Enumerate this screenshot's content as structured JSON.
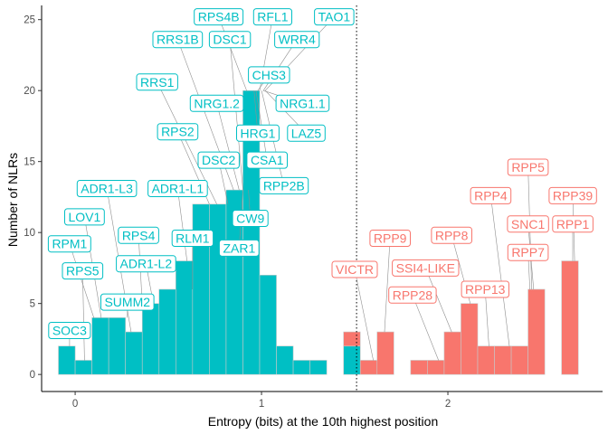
{
  "chart_data": {
    "type": "bar",
    "subtype": "stacked histogram with repelled text labels",
    "title": "",
    "xlabel": "Entropy (bits) at the 10th highest position",
    "ylabel": "Number of NLRs",
    "xlim": [
      -0.18,
      2.83
    ],
    "ylim": [
      -1.2,
      26
    ],
    "x_ticks": [
      0,
      1,
      2
    ],
    "y_ticks": [
      0,
      5,
      10,
      15,
      20,
      25
    ],
    "grid": false,
    "legend": "none",
    "bin_width": 0.09,
    "threshold": 1.51,
    "colors": {
      "group1": "#00BFC4",
      "group2": "#F8766D",
      "bar_edge": "#c8c8c8",
      "leader": "#8f8f8f"
    },
    "series": [
      {
        "name": "",
        "color": "#00BFC4",
        "bins": [
          {
            "x": -0.045,
            "y": 2
          },
          {
            "x": 0.045,
            "y": 1
          },
          {
            "x": 0.135,
            "y": 4
          },
          {
            "x": 0.225,
            "y": 4
          },
          {
            "x": 0.315,
            "y": 3
          },
          {
            "x": 0.405,
            "y": 5
          },
          {
            "x": 0.495,
            "y": 6
          },
          {
            "x": 0.585,
            "y": 8
          },
          {
            "x": 0.675,
            "y": 12
          },
          {
            "x": 0.765,
            "y": 12
          },
          {
            "x": 0.855,
            "y": 13
          },
          {
            "x": 0.945,
            "y": 20
          },
          {
            "x": 1.035,
            "y": 7
          },
          {
            "x": 1.125,
            "y": 2
          },
          {
            "x": 1.215,
            "y": 1
          },
          {
            "x": 1.305,
            "y": 1
          },
          {
            "x": 1.485,
            "y": 2
          }
        ]
      },
      {
        "name": "",
        "color": "#F8766D",
        "bins": [
          {
            "x": 1.485,
            "y": 1
          },
          {
            "x": 1.575,
            "y": 1
          },
          {
            "x": 1.665,
            "y": 3
          },
          {
            "x": 1.845,
            "y": 1
          },
          {
            "x": 1.935,
            "y": 1
          },
          {
            "x": 2.025,
            "y": 3
          },
          {
            "x": 2.115,
            "y": 5
          },
          {
            "x": 2.205,
            "y": 2
          },
          {
            "x": 2.295,
            "y": 2
          },
          {
            "x": 2.385,
            "y": 2
          },
          {
            "x": 2.475,
            "y": 6
          },
          {
            "x": 2.655,
            "y": 8
          }
        ]
      }
    ],
    "labels": [
      {
        "text": "SOC3",
        "group": 1,
        "x": -0.03,
        "y": 2,
        "lx": -0.03,
        "ly": 3.1
      },
      {
        "text": "RPS5",
        "group": 1,
        "x": 0.05,
        "y": 1,
        "lx": 0.04,
        "ly": 7.3
      },
      {
        "text": "RPM1",
        "group": 1,
        "x": 0.1,
        "y": 4,
        "lx": -0.03,
        "ly": 9.2
      },
      {
        "text": "LOV1",
        "group": 1,
        "x": 0.14,
        "y": 4,
        "lx": 0.05,
        "ly": 11.1
      },
      {
        "text": "ADR1-L3",
        "group": 1,
        "x": 0.3,
        "y": 3,
        "lx": 0.17,
        "ly": 13.1
      },
      {
        "text": "SUMM2",
        "group": 1,
        "x": 0.28,
        "y": 4,
        "lx": 0.28,
        "ly": 5.1
      },
      {
        "text": "RPS4",
        "group": 1,
        "x": 0.36,
        "y": 5,
        "lx": 0.34,
        "ly": 9.8
      },
      {
        "text": "ADR1-L2",
        "group": 1,
        "x": 0.42,
        "y": 5,
        "lx": 0.38,
        "ly": 7.8
      },
      {
        "text": "ADR1-L1",
        "group": 1,
        "x": 0.6,
        "y": 8,
        "lx": 0.55,
        "ly": 13.1
      },
      {
        "text": "RLM1",
        "group": 1,
        "x": 0.63,
        "y": 6,
        "lx": 0.63,
        "ly": 9.6
      },
      {
        "text": "RPS2",
        "group": 1,
        "x": 0.72,
        "y": 12,
        "lx": 0.55,
        "ly": 17.1
      },
      {
        "text": "RRS1",
        "group": 1,
        "x": 0.76,
        "y": 12,
        "lx": 0.44,
        "ly": 20.6
      },
      {
        "text": "DSC2",
        "group": 1,
        "x": 0.82,
        "y": 12,
        "lx": 0.77,
        "ly": 15.1
      },
      {
        "text": "RRS1B",
        "group": 1,
        "x": 0.85,
        "y": 13,
        "lx": 0.55,
        "ly": 23.6
      },
      {
        "text": "NRG1.2",
        "group": 1,
        "x": 0.88,
        "y": 13,
        "lx": 0.76,
        "ly": 19.1
      },
      {
        "text": "ZAR1",
        "group": 1,
        "x": 0.9,
        "y": 13,
        "lx": 0.88,
        "ly": 8.9
      },
      {
        "text": "CW9",
        "group": 1,
        "x": 0.93,
        "y": 13,
        "lx": 0.94,
        "ly": 11.0
      },
      {
        "text": "DSC1",
        "group": 1,
        "x": 0.9,
        "y": 13,
        "lx": 0.83,
        "ly": 23.6
      },
      {
        "text": "RPS4B",
        "group": 1,
        "x": 0.92,
        "y": 20,
        "lx": 0.77,
        "ly": 25.2
      },
      {
        "text": "HRG1",
        "group": 1,
        "x": 0.96,
        "y": 20,
        "lx": 0.98,
        "ly": 17.0
      },
      {
        "text": "CSA1",
        "group": 1,
        "x": 0.97,
        "y": 20,
        "lx": 1.03,
        "ly": 15.1
      },
      {
        "text": "RPP2B",
        "group": 1,
        "x": 1.0,
        "y": 20,
        "lx": 1.12,
        "ly": 13.3
      },
      {
        "text": "CHS3",
        "group": 1,
        "x": 0.98,
        "y": 20,
        "lx": 1.04,
        "ly": 21.1
      },
      {
        "text": "RFL1",
        "group": 1,
        "x": 0.99,
        "y": 20,
        "lx": 1.06,
        "ly": 25.2
      },
      {
        "text": "WRR4",
        "group": 1,
        "x": 1.01,
        "y": 20,
        "lx": 1.19,
        "ly": 23.6
      },
      {
        "text": "NRG1.1",
        "group": 1,
        "x": 1.01,
        "y": 20,
        "lx": 1.22,
        "ly": 19.1
      },
      {
        "text": "LAZ5",
        "group": 1,
        "x": 1.02,
        "y": 20,
        "lx": 1.24,
        "ly": 17.0
      },
      {
        "text": "TAO1",
        "group": 1,
        "x": 1.02,
        "y": 20,
        "lx": 1.39,
        "ly": 25.2
      },
      {
        "text": "VICTR",
        "group": 2,
        "x": 1.6,
        "y": 1,
        "lx": 1.5,
        "ly": 7.4
      },
      {
        "text": "RPP9",
        "group": 2,
        "x": 1.66,
        "y": 3,
        "lx": 1.69,
        "ly": 9.6
      },
      {
        "text": "RPP28",
        "group": 2,
        "x": 1.95,
        "y": 1,
        "lx": 1.81,
        "ly": 5.6
      },
      {
        "text": "SSI4-LIKE",
        "group": 2,
        "x": 2.02,
        "y": 3,
        "lx": 1.88,
        "ly": 7.5
      },
      {
        "text": "RPP8",
        "group": 2,
        "x": 2.12,
        "y": 5,
        "lx": 2.02,
        "ly": 9.8
      },
      {
        "text": "RPP13",
        "group": 2,
        "x": 2.22,
        "y": 2,
        "lx": 2.2,
        "ly": 6.0
      },
      {
        "text": "RPP4",
        "group": 2,
        "x": 2.33,
        "y": 2,
        "lx": 2.23,
        "ly": 12.6
      },
      {
        "text": "RPP7",
        "group": 2,
        "x": 2.44,
        "y": 6,
        "lx": 2.43,
        "ly": 8.6
      },
      {
        "text": "SNC1",
        "group": 2,
        "x": 2.46,
        "y": 6,
        "lx": 2.43,
        "ly": 10.6
      },
      {
        "text": "RPP5",
        "group": 2,
        "x": 2.45,
        "y": 6,
        "lx": 2.43,
        "ly": 14.6
      },
      {
        "text": "RPP39",
        "group": 2,
        "x": 2.68,
        "y": 8,
        "lx": 2.67,
        "ly": 12.6
      },
      {
        "text": "RPP1",
        "group": 2,
        "x": 2.67,
        "y": 8,
        "lx": 2.67,
        "ly": 10.6
      }
    ]
  }
}
